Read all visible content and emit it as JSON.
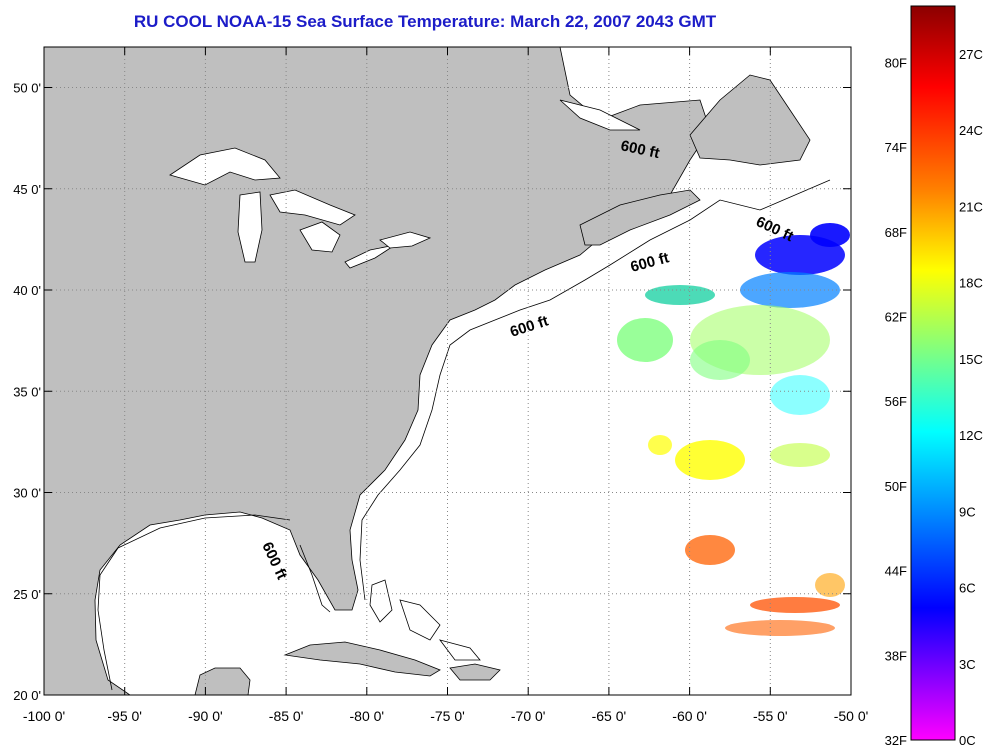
{
  "title": "RU COOL  NOAA-15  Sea Surface Temperature:  March 22, 2007 2043 GMT",
  "map": {
    "lon_range": [
      -100,
      -50
    ],
    "lat_range": [
      20,
      52
    ],
    "lon_ticks": [
      "-100 0'",
      "-95 0'",
      "-90 0'",
      "-85 0'",
      "-80 0'",
      "-75 0'",
      "-70 0'",
      "-65 0'",
      "-60 0'",
      "-55 0'",
      "-50 0'"
    ],
    "lat_ticks": [
      "20 0'",
      "25 0'",
      "30 0'",
      "35 0'",
      "40 0'",
      "45 0'",
      "50 0'"
    ],
    "land_color": "#bfbfbf",
    "ocean_color": "#ffffff",
    "contour_label": "600 ft",
    "contour_labels": [
      "600 ft",
      "600 ft",
      "600 ft",
      "600 ft",
      "600 ft"
    ]
  },
  "colorbar": {
    "fahrenheit_labels": [
      "80F",
      "74F",
      "68F",
      "62F",
      "56F",
      "50F",
      "44F",
      "38F",
      "32F"
    ],
    "celsius_labels": [
      "27C",
      "24C",
      "21C",
      "18C",
      "15C",
      "12C",
      "9C",
      "6C",
      "3C",
      "0C"
    ],
    "colors": [
      "#8b0000",
      "#ff0000",
      "#ff8000",
      "#ffff00",
      "#80ff80",
      "#00ffff",
      "#0080ff",
      "#0000ff",
      "#8000ff",
      "#ff00ff"
    ]
  }
}
